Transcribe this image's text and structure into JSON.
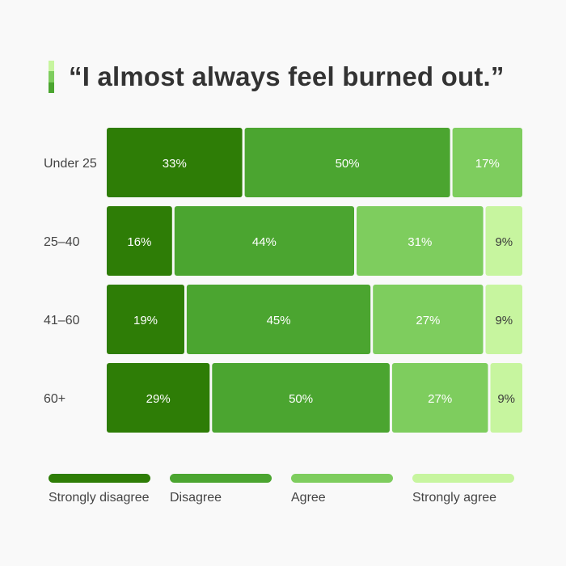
{
  "colors": {
    "strongly_disagree": "#2e7d06",
    "disagree": "#4ba530",
    "agree": "#7ecd5e",
    "strongly_agree": "#c7f59f",
    "label_text": "#444444",
    "bar_text_light": "#ffffff",
    "bar_text_dark": "#3a3a3a",
    "background": "#f9f9f9"
  },
  "chart_data": {
    "type": "bar",
    "orientation": "horizontal",
    "stacked": true,
    "title": "“I almost always feel burned out.”",
    "categories": [
      "Under 25",
      "25–40",
      "41–60",
      "60+"
    ],
    "series": [
      {
        "name": "Strongly disagree",
        "values": [
          33,
          16,
          19,
          29
        ],
        "labels": [
          "33%",
          "16%",
          "19%",
          "29%"
        ]
      },
      {
        "name": "Disagree",
        "values": [
          50,
          44,
          45,
          50
        ],
        "labels": [
          "50%",
          "44%",
          "45%",
          "50%"
        ]
      },
      {
        "name": "Agree",
        "values": [
          17,
          31,
          27,
          27
        ],
        "labels": [
          "17%",
          "31%",
          "27%",
          "27%"
        ]
      },
      {
        "name": "Strongly agree",
        "values": [
          0,
          9,
          9,
          9
        ],
        "labels": [
          "",
          "9%",
          "9%",
          "9%"
        ]
      }
    ],
    "legend_position": "bottom",
    "grid": false
  }
}
